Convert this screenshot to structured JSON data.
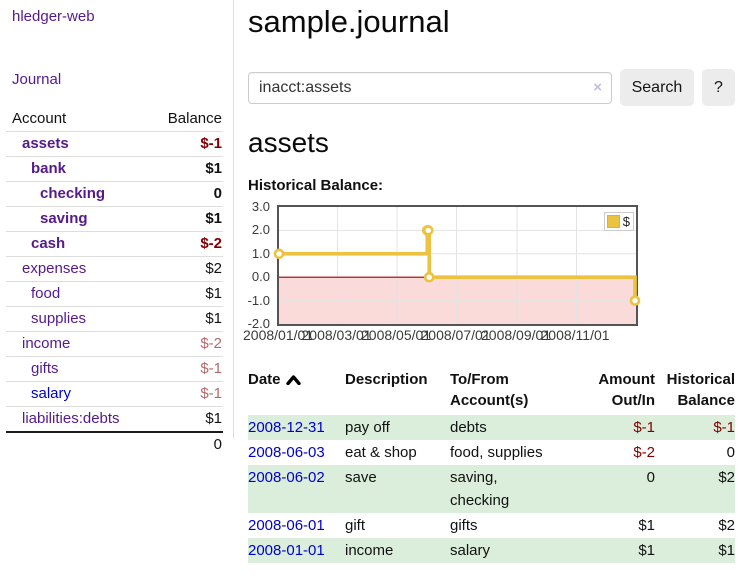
{
  "app": {
    "title": "hledger-web",
    "nav_journal": "Journal"
  },
  "sidebar": {
    "headers": {
      "account": "Account",
      "balance": "Balance"
    },
    "accounts": [
      {
        "name": "assets",
        "balance": "$-1"
      },
      {
        "name": "bank",
        "balance": "$1"
      },
      {
        "name": "checking",
        "balance": "0"
      },
      {
        "name": "saving",
        "balance": "$1"
      },
      {
        "name": "cash",
        "balance": "$-2"
      },
      {
        "name": "expenses",
        "balance": "$2"
      },
      {
        "name": "food",
        "balance": "$1"
      },
      {
        "name": "supplies",
        "balance": "$1"
      },
      {
        "name": "income",
        "balance": "$-2"
      },
      {
        "name": "gifts",
        "balance": "$-1"
      },
      {
        "name": "salary",
        "balance": "$-1"
      },
      {
        "name": "liabilities:debts",
        "balance": "$1"
      }
    ],
    "total": "0"
  },
  "header": {
    "title": "sample.journal"
  },
  "search": {
    "value": "inacct:assets",
    "clear_icon": "×",
    "button": "Search",
    "help_button": "?"
  },
  "account_page": {
    "title": "assets",
    "chart_label": "Historical Balance:"
  },
  "chart_data": {
    "type": "line",
    "title": "Historical Balance:",
    "xlim_days": [
      0,
      366
    ],
    "ylim": [
      -2,
      3
    ],
    "x_ticks": [
      {
        "label": "2008/01/01",
        "day": 0
      },
      {
        "label": "2008/03/01",
        "day": 60
      },
      {
        "label": "2008/05/01",
        "day": 121
      },
      {
        "label": "2008/07/01",
        "day": 182
      },
      {
        "label": "2008/09/01",
        "day": 244
      },
      {
        "label": "2008/11/01",
        "day": 305
      }
    ],
    "y_ticks": [
      {
        "label": "3.0",
        "value": 3
      },
      {
        "label": "2.0",
        "value": 2
      },
      {
        "label": "1.0",
        "value": 1
      },
      {
        "label": "0.0",
        "value": 0
      },
      {
        "label": "-1.0",
        "value": -1
      },
      {
        "label": "-2.0",
        "value": -2
      }
    ],
    "series": [
      {
        "name": "$",
        "color": "#edc240",
        "step": true,
        "points": [
          {
            "date": "2008-01-01",
            "day": 0,
            "value": 1
          },
          {
            "date": "2008-06-01",
            "day": 152,
            "value": 2
          },
          {
            "date": "2008-06-02",
            "day": 153,
            "value": 2
          },
          {
            "date": "2008-06-03",
            "day": 154,
            "value": 0
          },
          {
            "date": "2008-12-31",
            "day": 365,
            "value": -1
          }
        ]
      }
    ],
    "grid": {
      "gridline_color": "#e3e3e3",
      "zero_line_color": "#a00000",
      "negative_region_color": "#fbdada"
    },
    "legend_position": "top-right"
  },
  "register": {
    "headers": {
      "date": "Date",
      "description": "Description",
      "accounts": "To/From Account(s)",
      "amount": "Amount Out/In",
      "balance": "Historical Balance"
    },
    "rows": [
      {
        "date": "2008-12-31",
        "description": "pay off",
        "accounts": "debts",
        "amount": "$-1",
        "balance": "$-1"
      },
      {
        "date": "2008-06-03",
        "description": "eat & shop",
        "accounts": "food, supplies",
        "amount": "$-2",
        "balance": "0"
      },
      {
        "date": "2008-06-02",
        "description": "save",
        "accounts": "saving, checking",
        "amount": "0",
        "balance": "$2"
      },
      {
        "date": "2008-06-01",
        "description": "gift",
        "accounts": "gifts",
        "amount": "$1",
        "balance": "$2"
      },
      {
        "date": "2008-01-01",
        "description": "income",
        "accounts": "salary",
        "amount": "$1",
        "balance": "$1"
      }
    ]
  }
}
